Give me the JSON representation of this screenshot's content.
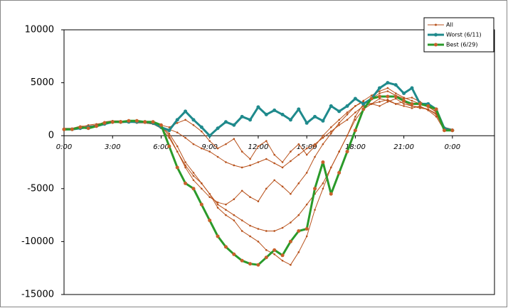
{
  "chart_data": {
    "type": "line",
    "x": [
      0,
      0.5,
      1,
      1.5,
      2,
      2.5,
      3,
      3.5,
      4,
      4.5,
      5,
      5.5,
      6,
      6.5,
      7,
      7.5,
      8,
      8.5,
      9,
      9.5,
      10,
      10.5,
      11,
      11.5,
      12,
      12.5,
      13,
      13.5,
      14,
      14.5,
      15,
      15.5,
      16,
      16.5,
      17,
      17.5,
      18,
      18.5,
      19,
      19.5,
      20,
      20.5,
      21,
      21.5,
      22,
      22.5,
      23,
      23.5,
      24
    ],
    "xlim": [
      0,
      26.6
    ],
    "xticks": [
      {
        "value": 0,
        "label": "0:00"
      },
      {
        "value": 3,
        "label": "3:00"
      },
      {
        "value": 6,
        "label": "6:00"
      },
      {
        "value": 9,
        "label": "9:00"
      },
      {
        "value": 12,
        "label": "12:00"
      },
      {
        "value": 15,
        "label": "15:00"
      },
      {
        "value": 18,
        "label": "18:00"
      },
      {
        "value": 21,
        "label": "21:00"
      },
      {
        "value": 24,
        "label": "0:00"
      }
    ],
    "ylim": [
      -15000,
      10000
    ],
    "yticks": [
      -15000,
      -10000,
      -5000,
      0,
      5000,
      10000
    ],
    "legend": "top-right",
    "series": [
      {
        "name": "All",
        "color": "#b8521c",
        "line_width": 1,
        "values": [
          700,
          700,
          900,
          900,
          1000,
          1300,
          1400,
          1300,
          1300,
          1400,
          1300,
          1200,
          900,
          200,
          -1000,
          -2500,
          -3500,
          -4500,
          -5500,
          -6500,
          -7000,
          -7500,
          -8000,
          -8500,
          -8800,
          -9000,
          -9000,
          -8700,
          -8200,
          -7500,
          -6500,
          -5500,
          -4500,
          -3000,
          -1500,
          0,
          1500,
          2500,
          3000,
          3500,
          3300,
          3000,
          3200,
          2800,
          2700,
          2500,
          2000,
          600,
          600
        ]
      },
      {
        "color": "#b8521c",
        "line_width": 1,
        "values": [
          500,
          600,
          700,
          800,
          1000,
          1200,
          1300,
          1200,
          1300,
          1300,
          1200,
          1100,
          800,
          600,
          300,
          -200,
          -800,
          -1200,
          -1500,
          -2000,
          -2500,
          -2800,
          -3000,
          -2800,
          -2500,
          -2200,
          -2600,
          -3000,
          -2400,
          -1800,
          -1200,
          -800,
          -200,
          400,
          1000,
          1500,
          2200,
          2800,
          3000,
          3200,
          3400,
          3000,
          2800,
          2600,
          2800,
          2400,
          1800,
          500,
          600
        ]
      },
      {
        "color": "#b8521c",
        "line_width": 1,
        "values": [
          600,
          700,
          800,
          1000,
          1100,
          1200,
          1400,
          1400,
          1300,
          1200,
          1200,
          1100,
          700,
          -200,
          -1500,
          -2800,
          -3800,
          -4500,
          -5500,
          -6800,
          -7500,
          -8000,
          -9000,
          -9500,
          -10000,
          -10800,
          -11200,
          -11800,
          -12200,
          -11000,
          -9500,
          -7000,
          -5000,
          -3000,
          -1500,
          0,
          1800,
          3000,
          3500,
          4000,
          4200,
          3800,
          3500,
          3600,
          3200,
          2800,
          2200,
          700,
          500
        ]
      },
      {
        "color": "#b8521c",
        "line_width": 1,
        "values": [
          600,
          650,
          750,
          850,
          1000,
          1200,
          1300,
          1300,
          1250,
          1300,
          1200,
          1100,
          900,
          0,
          -1500,
          -3000,
          -4200,
          -5000,
          -5800,
          -6300,
          -6500,
          -6000,
          -5200,
          -5800,
          -6200,
          -5000,
          -4200,
          -4800,
          -5500,
          -4500,
          -3500,
          -2000,
          -800,
          200,
          1200,
          2000,
          2800,
          3200,
          3000,
          2800,
          3200,
          3500,
          3000,
          2800,
          2600,
          2500,
          2100,
          600,
          500
        ]
      },
      {
        "color": "#b8521c",
        "line_width": 1,
        "values": [
          550,
          600,
          700,
          900,
          1000,
          1100,
          1200,
          1300,
          1300,
          1300,
          1250,
          1150,
          1000,
          800,
          1200,
          1500,
          1000,
          400,
          -500,
          -1200,
          -800,
          -300,
          -1500,
          -2200,
          -1000,
          -500,
          -1800,
          -2500,
          -1500,
          -800,
          -1800,
          -1000,
          0,
          800,
          1500,
          2200,
          2800,
          3300,
          3800,
          4200,
          4500,
          4000,
          3600,
          3300,
          3000,
          2700,
          2300,
          800,
          600
        ]
      },
      {
        "name": "Worst (6/11)",
        "color": "#1f8a8c",
        "line_width": 3,
        "values": [
          600,
          600,
          700,
          800,
          900,
          1100,
          1300,
          1300,
          1300,
          1300,
          1300,
          1200,
          800,
          500,
          1500,
          2300,
          1500,
          800,
          0,
          700,
          1300,
          1000,
          1800,
          1500,
          2700,
          2000,
          2400,
          2000,
          1500,
          2500,
          1200,
          1800,
          1400,
          2800,
          2300,
          2800,
          3500,
          3000,
          3500,
          4500,
          5000,
          4800,
          4000,
          4500,
          3000,
          3000,
          2500,
          700,
          500
        ]
      },
      {
        "name": "Best (6/29)",
        "color": "#2a9a2a",
        "marker_color": "#c8602a",
        "line_width": 3,
        "values": [
          600,
          600,
          800,
          700,
          900,
          1200,
          1300,
          1300,
          1400,
          1400,
          1300,
          1300,
          1000,
          -1000,
          -3000,
          -4500,
          -5000,
          -6500,
          -8000,
          -9500,
          -10500,
          -11200,
          -11800,
          -12100,
          -12200,
          -11500,
          -10800,
          -11300,
          -10000,
          -9000,
          -8800,
          -5000,
          -2500,
          -5500,
          -3500,
          -1500,
          500,
          2500,
          3500,
          3700,
          3700,
          3700,
          3300,
          3000,
          3000,
          2800,
          2500,
          500,
          500
        ]
      }
    ]
  }
}
